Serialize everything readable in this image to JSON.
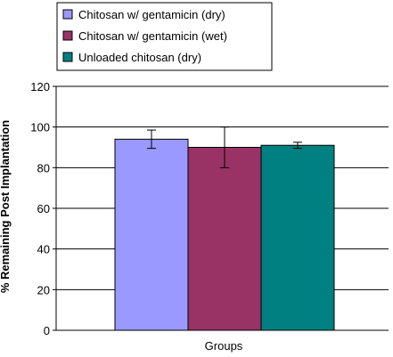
{
  "chart_data": {
    "type": "bar",
    "xlabel": "Groups",
    "ylabel": "% Remaining Post Implantation",
    "ylim": [
      0,
      120
    ],
    "yticks": [
      0,
      20,
      40,
      60,
      80,
      100,
      120
    ],
    "grid": true,
    "legend_position": "top",
    "categories": [
      "Groups"
    ],
    "series": [
      {
        "name": "Chitosan w/ gentamicin (dry)",
        "values": [
          94
        ],
        "error": [
          4.5
        ],
        "color": "#9999ff"
      },
      {
        "name": "Chitosan w/ gentamicin (wet)",
        "values": [
          90
        ],
        "error": [
          10
        ],
        "color": "#993366"
      },
      {
        "name": "Unloaded chitosan (dry)",
        "values": [
          91
        ],
        "error": [
          1.5
        ],
        "color": "#008080"
      }
    ]
  }
}
